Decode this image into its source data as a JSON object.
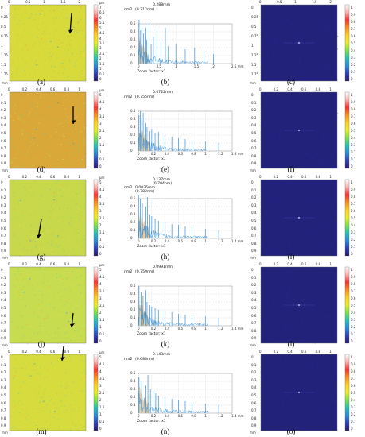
{
  "panels": [
    {
      "id": "row1",
      "captions": [
        "(a)",
        "(b)",
        "(c)"
      ],
      "height_map": {
        "x_ticks": [
          "0",
          "0.5",
          "1",
          "1.5",
          "2"
        ],
        "x_unit": "mm",
        "y_ticks": [
          "0",
          "0.25",
          "0.5",
          "0.75",
          "1",
          "1.25",
          "1.5",
          "1.75"
        ],
        "colorbar_unit": "µm",
        "colorbar_ticks": [
          "7",
          "6.5",
          "6",
          "5.5",
          "5",
          "4.5",
          "4",
          "3.5",
          "3",
          "2.5",
          "2",
          "1.5",
          "1",
          "0.5",
          "0"
        ]
      },
      "spectrum": {
        "peak_label": "0.288mm",
        "nm2_label": "nm2",
        "value_label": "(0.712nm)",
        "zoom_label": "Zoom factor: x1",
        "x_ticks": [
          "0",
          "0.5",
          "1",
          "1.5",
          "2",
          "2.5 mm"
        ],
        "y_ticks": [
          "0.5",
          "0.4",
          "0.3",
          "0.2",
          "0.1",
          "0"
        ]
      },
      "fft_map": {
        "x_ticks": [
          "0",
          "0.5",
          "1",
          "1.5",
          "2"
        ],
        "x_unit": "mm",
        "y_ticks": [
          "0",
          "0.25",
          "0.5",
          "0.75",
          "1",
          "1.25",
          "1.5",
          "1.75"
        ],
        "colorbar_ticks": [
          "1",
          "0.9",
          "0.8",
          "0.7",
          "0.6",
          "0.5",
          "0.4",
          "0.3",
          "0.2",
          "0.1",
          "0"
        ]
      }
    },
    {
      "id": "row2",
      "captions": [
        "(d)",
        "(e)",
        "(f)"
      ],
      "height_map": {
        "x_ticks": [
          "0",
          "0.2",
          "0.4",
          "0.6",
          "0.8",
          "1"
        ],
        "x_unit": "mm",
        "y_ticks": [
          "0",
          "0.1",
          "0.2",
          "0.3",
          "0.4",
          "0.5",
          "0.6",
          "0.7",
          "0.8",
          "0.9"
        ],
        "colorbar_unit": "µm",
        "colorbar_ticks": [
          "5",
          "4.5",
          "4",
          "3.5",
          "3",
          "2.5",
          "2",
          "1.5",
          "1",
          "0.5",
          "0"
        ]
      },
      "spectrum": {
        "peak_label": "0.0722mm",
        "nm2_label": "nm2",
        "value_label": "(0.755nm)",
        "zoom_label": "Zoom factor: x1",
        "x_ticks": [
          "0",
          "0.2",
          "0.4",
          "0.6",
          "0.8",
          "1",
          "1.2",
          "1.4 mm"
        ],
        "y_ticks": [
          "0.5",
          "0.4",
          "0.3",
          "0.2",
          "0.1",
          "0"
        ]
      },
      "fft_map": {
        "x_ticks": [
          "0",
          "0.2",
          "0.4",
          "0.6",
          "0.8",
          "1"
        ],
        "x_unit": "mm",
        "y_ticks": [
          "0",
          "0.1",
          "0.2",
          "0.3",
          "0.4",
          "0.5",
          "0.6",
          "0.7",
          "0.8",
          "0.9"
        ],
        "colorbar_ticks": [
          "1",
          "0.9",
          "0.8",
          "0.7",
          "0.6",
          "0.5",
          "0.4",
          "0.3",
          "0.2",
          "0.1",
          "0"
        ]
      }
    },
    {
      "id": "row3",
      "captions": [
        "(g)",
        "(h)",
        "(i)"
      ],
      "height_map": {
        "x_ticks": [
          "0",
          "0.2",
          "0.4",
          "0.6",
          "0.8",
          "1"
        ],
        "x_unit": "mm",
        "y_ticks": [
          "0",
          "0.1",
          "0.2",
          "0.3",
          "0.4",
          "0.5",
          "0.6",
          "0.7",
          "0.8",
          "0.9"
        ],
        "colorbar_unit": "µm",
        "colorbar_ticks": [
          "5",
          "4.5",
          "4",
          "3.5",
          "3",
          "2.5",
          "2",
          "1.5",
          "1",
          "0.5",
          "0"
        ]
      },
      "spectrum": {
        "peak_label": "0.137mm",
        "peak_label2": "(0.704nm)",
        "nm2_label": "nm2",
        "value_label": "0.0035mm",
        "value_label2": "(0.782nm)",
        "zoom_label": "Zoom factor: x1",
        "x_ticks": [
          "0",
          "0.2",
          "0.4",
          "0.6",
          "0.8",
          "1",
          "1.2",
          "1.4 mm"
        ],
        "y_ticks": [
          "0.5",
          "0.4",
          "0.3",
          "0.2",
          "0.1",
          "0"
        ]
      },
      "fft_map": {
        "x_ticks": [
          "0",
          "0.2",
          "0.4",
          "0.6",
          "0.8",
          "1"
        ],
        "x_unit": "mm",
        "y_ticks": [
          "0",
          "0.1",
          "0.2",
          "0.3",
          "0.4",
          "0.5",
          "0.6",
          "0.7",
          "0.8",
          "0.9"
        ],
        "colorbar_ticks": [
          "1",
          "0.9",
          "0.8",
          "0.7",
          "0.6",
          "0.5",
          "0.4",
          "0.3",
          "0.2",
          "0.1",
          "0"
        ]
      }
    },
    {
      "id": "row4",
      "captions": [
        "(j)",
        "(k)",
        "(l)"
      ],
      "height_map": {
        "x_ticks": [
          "0",
          "0.2",
          "0.4",
          "0.6",
          "0.8",
          "1"
        ],
        "x_unit": "mm",
        "y_ticks": [
          "0",
          "0.1",
          "0.2",
          "0.3",
          "0.4",
          "0.5",
          "0.6",
          "0.7",
          "0.8",
          "0.9"
        ],
        "colorbar_unit": "µm",
        "colorbar_ticks": [
          "5",
          "4.5",
          "4",
          "3.5",
          "3",
          "2.5",
          "2",
          "1.5",
          "1",
          "0.5",
          "0"
        ]
      },
      "spectrum": {
        "peak_label": "0.0991mm",
        "nm2_label": "nm2",
        "value_label": "(0.759nm)",
        "zoom_label": "Zoom factor: x1",
        "x_ticks": [
          "0",
          "0.2",
          "0.4",
          "0.6",
          "0.8",
          "1",
          "1.2",
          "1.4 mm"
        ],
        "y_ticks": [
          "0.5",
          "0.4",
          "0.3",
          "0.2",
          "0.1",
          "0"
        ]
      },
      "fft_map": {
        "x_ticks": [
          "0",
          "0.2",
          "0.4",
          "0.6",
          "0.8",
          "1"
        ],
        "x_unit": "mm",
        "y_ticks": [
          "0",
          "0.1",
          "0.2",
          "0.3",
          "0.4",
          "0.5",
          "0.6",
          "0.7",
          "0.8",
          "0.9"
        ],
        "colorbar_ticks": [
          "1",
          "0.9",
          "0.8",
          "0.7",
          "0.6",
          "0.5",
          "0.4",
          "0.3",
          "0.2",
          "0.1",
          "0"
        ]
      }
    },
    {
      "id": "row5",
      "captions": [
        "(m)",
        "(n)",
        "(o)"
      ],
      "height_map": {
        "x_ticks": [
          "0",
          "0.2",
          "0.4",
          "0.6",
          "0.8",
          "1"
        ],
        "x_unit": "mm",
        "y_ticks": [
          "0",
          "0.1",
          "0.2",
          "0.3",
          "0.4",
          "0.5",
          "0.6",
          "0.7",
          "0.8",
          "0.9"
        ],
        "colorbar_unit": "µm",
        "colorbar_ticks": [
          "5",
          "4.5",
          "4",
          "3.5",
          "3",
          "2.5",
          "2",
          "1.5",
          "1",
          "0.5",
          "0"
        ]
      },
      "spectrum": {
        "peak_label": "0.143mm",
        "nm2_label": "nm2",
        "value_label": "(0.688nm)",
        "zoom_label": "Zoom factor: x1",
        "x_ticks": [
          "0",
          "0.2",
          "0.4",
          "0.6",
          "0.8",
          "1",
          "1.2",
          "1.4 mm"
        ],
        "y_ticks": [
          "0.5",
          "0.4",
          "0.3",
          "0.2",
          "0.1",
          "0"
        ]
      },
      "fft_map": {
        "x_ticks": [
          "0",
          "0.2",
          "0.4",
          "0.6",
          "0.8",
          "1"
        ],
        "x_unit": "mm",
        "y_ticks": [
          "0",
          "0.1",
          "0.2",
          "0.3",
          "0.4",
          "0.5",
          "0.6",
          "0.7",
          "0.8",
          "0.9"
        ],
        "colorbar_ticks": [
          "1",
          "0.9",
          "0.8",
          "0.7",
          "0.6",
          "0.5",
          "0.4",
          "0.3",
          "0.2",
          "0.1",
          "0"
        ]
      }
    }
  ],
  "colors": {
    "height_map_base": [
      "#d8d93a",
      "#d9a838",
      "#c7d84a",
      "#c8dc50",
      "#d6dc3e"
    ],
    "fft_base": "#22227a",
    "spectrum_line": "#3a8fd6",
    "spectrum_fill": "#e9c99a",
    "colorbar_stops": [
      "#ffffff",
      "#ffb0b0",
      "#ff3030",
      "#ff8c1a",
      "#ffd21a",
      "#e6ef1f",
      "#7ee04a",
      "#22c4b4",
      "#2a8bd8",
      "#2f3fb8",
      "#2a1a6a"
    ]
  },
  "chart_data": [
    {
      "type": "line",
      "title": "",
      "xlabel": "mm",
      "ylabel": "nm2",
      "xlim": [
        0,
        2.5
      ],
      "ylim": [
        0,
        0.5
      ],
      "x": [
        0.02,
        0.06,
        0.1,
        0.14,
        0.18,
        0.22,
        0.288,
        0.34,
        0.4,
        0.5,
        0.6,
        0.72,
        0.8,
        1.0,
        1.25,
        1.5,
        1.75,
        2.0
      ],
      "values": [
        0.55,
        0.42,
        0.5,
        0.38,
        0.45,
        0.3,
        0.52,
        0.24,
        0.34,
        0.45,
        0.3,
        0.45,
        0.22,
        0.25,
        0.18,
        0.2,
        0.15,
        0.12
      ]
    },
    {
      "type": "line",
      "title": "",
      "xlabel": "mm",
      "ylabel": "nm2",
      "xlim": [
        0,
        1.4
      ],
      "ylim": [
        0,
        0.5
      ],
      "x": [
        0.01,
        0.03,
        0.05,
        0.0722,
        0.1,
        0.13,
        0.17,
        0.2,
        0.25,
        0.3,
        0.4,
        0.5,
        0.6,
        0.7,
        0.8,
        1.0,
        1.2
      ],
      "values": [
        0.45,
        0.5,
        0.42,
        0.48,
        0.35,
        0.3,
        0.25,
        0.28,
        0.22,
        0.24,
        0.2,
        0.18,
        0.16,
        0.15,
        0.14,
        0.12,
        0.1
      ]
    },
    {
      "type": "line",
      "title": "",
      "xlabel": "mm",
      "ylabel": "nm2",
      "xlim": [
        0,
        1.4
      ],
      "ylim": [
        0,
        0.5
      ],
      "x": [
        0.0035,
        0.03,
        0.06,
        0.1,
        0.137,
        0.17,
        0.2,
        0.25,
        0.3,
        0.4,
        0.5,
        0.6,
        0.7,
        0.8,
        1.0,
        1.2
      ],
      "values": [
        0.55,
        0.5,
        0.45,
        0.4,
        0.52,
        0.3,
        0.28,
        0.25,
        0.22,
        0.2,
        0.18,
        0.17,
        0.15,
        0.14,
        0.12,
        0.1
      ]
    },
    {
      "type": "line",
      "title": "",
      "xlabel": "mm",
      "ylabel": "nm2",
      "xlim": [
        0,
        1.4
      ],
      "ylim": [
        0,
        0.5
      ],
      "x": [
        0.01,
        0.04,
        0.07,
        0.0991,
        0.13,
        0.17,
        0.2,
        0.25,
        0.3,
        0.4,
        0.5,
        0.6,
        0.7,
        0.8,
        1.0,
        1.2
      ],
      "values": [
        0.5,
        0.42,
        0.38,
        0.45,
        0.3,
        0.26,
        0.24,
        0.22,
        0.2,
        0.18,
        0.17,
        0.15,
        0.14,
        0.13,
        0.12,
        0.1
      ]
    },
    {
      "type": "line",
      "title": "",
      "xlabel": "mm",
      "ylabel": "nm2",
      "xlim": [
        0,
        1.4
      ],
      "ylim": [
        0,
        0.5
      ],
      "x": [
        0.01,
        0.05,
        0.1,
        0.143,
        0.18,
        0.22,
        0.26,
        0.3,
        0.4,
        0.5,
        0.6,
        0.7,
        0.8,
        1.0,
        1.2
      ],
      "values": [
        0.45,
        0.4,
        0.35,
        0.48,
        0.3,
        0.28,
        0.25,
        0.22,
        0.2,
        0.18,
        0.16,
        0.15,
        0.14,
        0.12,
        0.1
      ]
    }
  ]
}
